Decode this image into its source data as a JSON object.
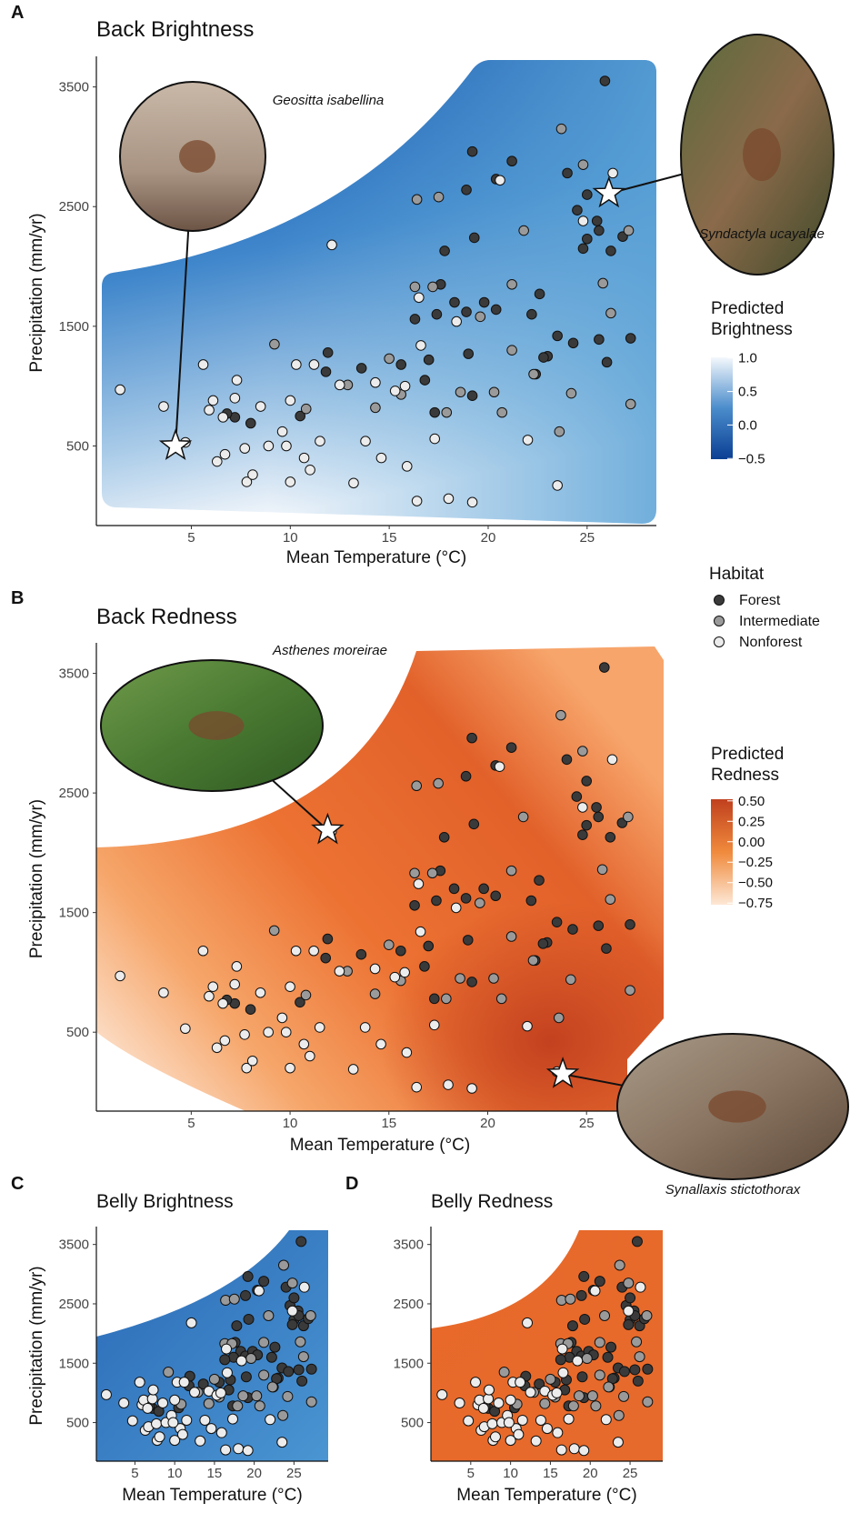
{
  "chart_data": [
    {
      "type": "scatter",
      "panel_label": "A",
      "title": "Back Brightness",
      "x_label": "Mean Temperature (°C)",
      "y_label": "Precipitation (mm/yr)",
      "xlim": [
        0.2,
        28.5
      ],
      "ylim": [
        -165,
        3725
      ],
      "xticks": [
        5,
        10,
        15,
        20,
        25
      ],
      "yticks": [
        500,
        1500,
        2500,
        3500
      ],
      "legend_title": "Habitat",
      "series": [
        {
          "name": "Forest",
          "color": "#3a3a3a",
          "x": [
            25.9,
            19.2,
            18.9,
            19.3,
            17.8,
            20.4,
            21.2,
            24.0,
            24.5,
            25.0,
            25.5,
            25.0,
            26.2,
            25.6,
            26.8,
            24.8,
            17.6,
            18.3,
            18.9,
            17.4,
            16.3,
            19.8,
            20.4,
            22.2,
            22.6,
            23.5,
            25.6,
            24.3,
            27.2,
            11.9,
            11.8,
            13.6,
            16.8,
            17.0,
            19.0,
            17.3,
            19.2,
            22.4,
            23.0,
            7.2,
            8.0,
            10.5,
            6.8,
            22.8,
            26.0,
            15.6
          ],
          "y": [
            3550,
            2960,
            2640,
            2240,
            2130,
            2730,
            2880,
            2780,
            2470,
            2600,
            2380,
            2230,
            2130,
            2300,
            2250,
            2150,
            1850,
            1700,
            1620,
            1600,
            1560,
            1700,
            1640,
            1600,
            1770,
            1420,
            1390,
            1360,
            1400,
            1280,
            1120,
            1150,
            1050,
            1220,
            1270,
            780,
            920,
            1100,
            1250,
            740,
            690,
            750,
            770,
            1240,
            1200,
            1180
          ]
        },
        {
          "name": "Intermediate",
          "color": "#9a9a9a",
          "x": [
            16.4,
            17.5,
            23.7,
            24.8,
            21.8,
            16.3,
            17.2,
            19.6,
            21.2,
            25.8,
            27.1,
            9.2,
            14.3,
            17.9,
            20.3,
            20.7,
            24.2,
            23.6,
            27.2,
            15.0,
            15.6,
            12.9,
            10.8,
            18.6,
            21.2,
            22.3,
            26.2
          ],
          "y": [
            2560,
            2580,
            3150,
            2850,
            2300,
            1830,
            1830,
            1580,
            1850,
            1860,
            2300,
            1350,
            820,
            780,
            950,
            780,
            940,
            620,
            850,
            1230,
            930,
            1010,
            810,
            950,
            1300,
            1100,
            1610
          ]
        },
        {
          "name": "Nonforest",
          "color": "#ececec",
          "x": [
            1.4,
            3.6,
            4.7,
            5.6,
            5.9,
            6.1,
            6.3,
            6.7,
            7.2,
            7.3,
            7.7,
            7.8,
            8.1,
            8.5,
            8.9,
            9.6,
            10.0,
            10.0,
            10.3,
            10.7,
            11.2,
            11.5,
            12.5,
            13.2,
            13.8,
            14.3,
            15.3,
            15.8,
            15.9,
            16.4,
            18.0,
            19.2,
            17.3,
            12.1,
            16.5,
            23.5,
            22.0,
            9.8,
            6.6,
            11.0,
            20.6,
            26.3,
            24.8,
            18.4,
            16.6,
            14.6
          ],
          "y": [
            970,
            830,
            530,
            1180,
            800,
            880,
            370,
            430,
            900,
            1050,
            480,
            200,
            260,
            830,
            500,
            620,
            880,
            200,
            1180,
            400,
            1180,
            540,
            1010,
            190,
            540,
            1030,
            960,
            1000,
            330,
            40,
            60,
            30,
            560,
            2180,
            1740,
            170,
            550,
            500,
            740,
            300,
            2720,
            2780,
            2380,
            1540,
            1340,
            400
          ]
        }
      ],
      "highlights": [
        {
          "name": "Geositta isabellina",
          "x": 4.2,
          "y": 500
        },
        {
          "name": "Syndactyla ucayalae",
          "x": 26.1,
          "y": 2610
        }
      ],
      "colorbar": {
        "title": [
          "Predicted",
          "Brightness"
        ],
        "lim": [
          -0.51,
          1.01
        ],
        "colors": [
          "#0b3f93",
          "#4a8ccc",
          "#f4f8fc"
        ],
        "ticks": [
          {
            "value": 1.0,
            "label": "1.0"
          },
          {
            "value": 0.5,
            "label": "0.5"
          },
          {
            "value": 0.0,
            "label": "0.0"
          },
          {
            "value": -0.5,
            "label": "−0.5"
          }
        ]
      }
    },
    {
      "type": "scatter",
      "panel_label": "B",
      "title": "Back Redness",
      "x_label": "Mean Temperature (°C)",
      "y_label": "Precipitation (mm/yr)",
      "xlim": [
        0.2,
        28.9
      ],
      "ylim": [
        -160,
        3725
      ],
      "xticks": [
        5,
        10,
        15,
        20,
        25
      ],
      "yticks": [
        500,
        1500,
        2500,
        3500
      ],
      "highlights": [
        {
          "name": "Asthenes moreirae",
          "x": 11.9,
          "y": 2190
        },
        {
          "name": "Synallaxis stictothorax",
          "x": 23.8,
          "y": 150
        }
      ],
      "colorbar": {
        "title": [
          "Predicted",
          "Redness"
        ],
        "lim": [
          -0.77,
          0.52
        ],
        "colors": [
          "#fde8d6",
          "#f08a3c",
          "#c0401e"
        ],
        "ticks": [
          {
            "value": 0.5,
            "label": "0.50"
          },
          {
            "value": 0.25,
            "label": "0.25"
          },
          {
            "value": 0.0,
            "label": "0.00"
          },
          {
            "value": -0.25,
            "label": "−0.25"
          },
          {
            "value": -0.5,
            "label": "−0.50"
          },
          {
            "value": -0.75,
            "label": "−0.75"
          }
        ]
      }
    },
    {
      "type": "scatter",
      "panel_label": "C",
      "title": "Belly Brightness",
      "x_label": "Mean Temperature (°C)",
      "y_label": "Precipitation (mm/yr)",
      "xlim": [
        0.15,
        29.3
      ],
      "ylim": [
        -150,
        3740
      ],
      "xticks": [
        5,
        10,
        15,
        20,
        25
      ],
      "yticks": [
        500,
        1500,
        2500,
        3500
      ]
    },
    {
      "type": "scatter",
      "panel_label": "D",
      "title": "Belly Redness",
      "x_label": "Mean Temperature (°C)",
      "xlim": [
        0,
        29.1
      ],
      "ylim": [
        -150,
        3740
      ],
      "xticks": [
        5,
        10,
        15,
        20,
        25
      ],
      "yticks": [
        500,
        1500,
        2500,
        3500
      ]
    }
  ]
}
